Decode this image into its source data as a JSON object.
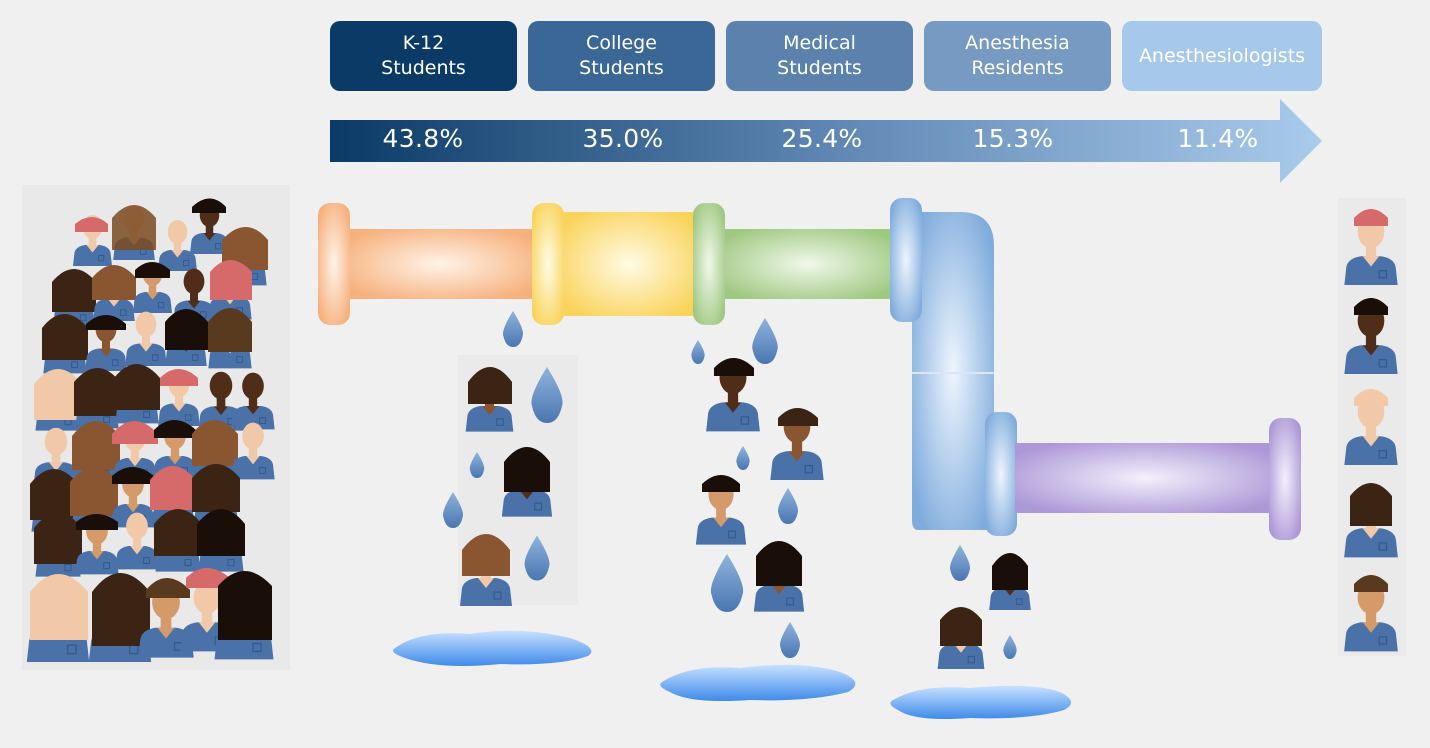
{
  "stages": [
    {
      "label": "K-12\nStudents",
      "color": "#0b3a66"
    },
    {
      "label": "College\nStudents",
      "color": "#3a6796"
    },
    {
      "label": "Medical\nStudents",
      "color": "#5a82ad"
    },
    {
      "label": "Anesthesia\nResidents",
      "color": "#769ac2"
    },
    {
      "label": "Anesthesiologists",
      "color": "#a6c8ea"
    }
  ],
  "percentages": [
    "43.8%",
    "35.0%",
    "25.4%",
    "15.3%",
    "11.4%"
  ],
  "pipe_colors": {
    "orange": "#f7b98a",
    "yellow": "#fbd96c",
    "green": "#a9cf8c",
    "blue": "#8db6e2",
    "purple": "#b8a7dc"
  },
  "figure_colors": {
    "scrubs": "#4a72a8",
    "skin_light": "#f1c9a8",
    "skin_medium": "#d49a6a",
    "skin_dark": "#8a5632",
    "skin_darkest": "#4f2d18"
  },
  "icons": {
    "person": "person-icon",
    "drop": "water-drop-icon",
    "puddle": "puddle-icon"
  }
}
